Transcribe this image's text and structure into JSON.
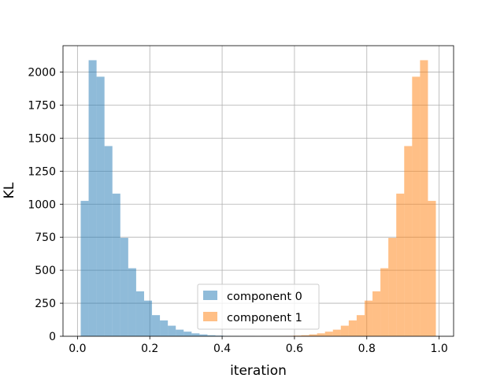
{
  "chart_data": {
    "type": "bar",
    "title": "",
    "xlabel": "iteration",
    "ylabel": "KL",
    "xlim": [
      -0.04,
      1.04
    ],
    "ylim": [
      0,
      2200
    ],
    "x_ticks": [
      "0.0",
      "0.2",
      "0.4",
      "0.6",
      "0.8",
      "1.0"
    ],
    "x_tick_values": [
      0.0,
      0.2,
      0.4,
      0.6,
      0.8,
      1.0
    ],
    "y_ticks": [
      "0",
      "250",
      "500",
      "750",
      "1000",
      "1250",
      "1500",
      "1750",
      "2000"
    ],
    "y_tick_values": [
      0,
      250,
      500,
      750,
      1000,
      1250,
      1500,
      1750,
      2000
    ],
    "grid": true,
    "legend_position": "lower-center",
    "bin_width": 0.0219,
    "series": [
      {
        "name": "component 0",
        "color": "#1f77b4",
        "opacity": 0.5,
        "bin_start": 0.009,
        "values": [
          1025,
          2090,
          1965,
          1440,
          1080,
          745,
          515,
          340,
          270,
          160,
          120,
          80,
          50,
          35,
          22,
          14,
          8,
          5,
          3,
          2,
          1,
          1,
          0,
          0,
          0,
          0,
          0,
          0,
          0,
          0,
          0,
          0,
          0,
          0,
          0,
          0,
          0,
          0,
          0,
          0,
          0,
          0,
          0,
          0,
          0
        ]
      },
      {
        "name": "component 1",
        "color": "#ff7f0e",
        "opacity": 0.5,
        "bin_start": 0.0055,
        "values": [
          0,
          0,
          0,
          0,
          0,
          0,
          0,
          0,
          0,
          0,
          0,
          0,
          0,
          0,
          0,
          0,
          0,
          0,
          0,
          0,
          0,
          0,
          0,
          1,
          1,
          2,
          3,
          5,
          8,
          14,
          22,
          35,
          50,
          80,
          120,
          160,
          270,
          340,
          515,
          745,
          1080,
          1440,
          1965,
          2090,
          1025
        ]
      }
    ]
  }
}
